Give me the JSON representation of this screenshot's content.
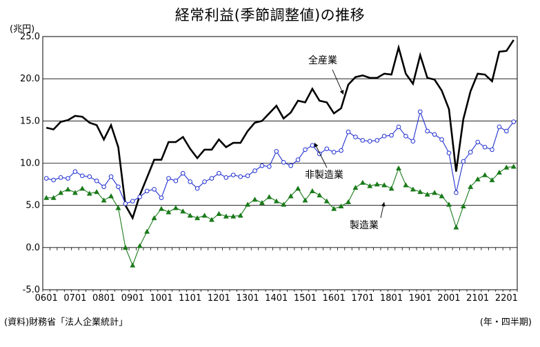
{
  "title": "経常利益(季節調整値)の推移",
  "unit_label": "(兆円)",
  "source_note": "(資料)財務省「法人企業統計」",
  "period_note": "(年・四半期)",
  "chart_data": {
    "type": "line",
    "ylim": [
      -5.0,
      25.0
    ],
    "yticks": [
      "25.0",
      "20.0",
      "15.0",
      "10.0",
      "5.0",
      "0.0",
      "-5.0"
    ],
    "ytick_values": [
      25,
      20,
      15,
      10,
      5,
      0,
      -5
    ],
    "xtick_labels": [
      "0601",
      "0701",
      "0801",
      "0901",
      "1001",
      "1101",
      "1201",
      "1301",
      "1401",
      "1501",
      "1601",
      "1701",
      "1801",
      "1901",
      "2001",
      "2101",
      "2201"
    ],
    "grid": "horizontal",
    "series": [
      {
        "name": "全産業",
        "color": "#000000",
        "marker": "none",
        "values": [
          14.2,
          14.0,
          14.9,
          15.1,
          15.6,
          15.5,
          14.8,
          14.5,
          12.8,
          14.5,
          11.9,
          5.0,
          3.5,
          6.2,
          8.3,
          10.4,
          10.4,
          12.5,
          12.5,
          13.1,
          11.7,
          10.6,
          11.6,
          11.6,
          12.8,
          11.9,
          12.4,
          12.4,
          13.8,
          14.8,
          15.0,
          15.9,
          16.8,
          15.3,
          16.0,
          17.4,
          17.2,
          18.8,
          17.4,
          17.2,
          15.9,
          16.5,
          19.3,
          20.2,
          20.4,
          20.1,
          20.1,
          20.6,
          20.5,
          23.7,
          20.6,
          19.4,
          22.8,
          20.1,
          19.9,
          18.6,
          16.4,
          9.0,
          15.2,
          18.5,
          20.6,
          20.5,
          19.7,
          23.2,
          23.3,
          24.6
        ]
      },
      {
        "name": "非製造業",
        "color": "#1f2fd0",
        "marker": "circle",
        "values": [
          8.2,
          8.0,
          8.3,
          8.2,
          9.0,
          8.5,
          8.4,
          7.9,
          7.2,
          8.4,
          7.2,
          5.2,
          5.5,
          6.0,
          6.7,
          6.9,
          5.9,
          8.2,
          7.9,
          8.8,
          7.8,
          7.0,
          7.8,
          8.2,
          8.8,
          8.3,
          8.6,
          8.4,
          8.5,
          9.1,
          9.7,
          9.6,
          11.4,
          10.1,
          9.7,
          10.4,
          11.6,
          12.1,
          11.1,
          11.7,
          11.3,
          11.5,
          13.7,
          13.1,
          12.7,
          12.6,
          12.7,
          13.2,
          13.3,
          14.3,
          13.2,
          12.6,
          16.1,
          13.8,
          13.4,
          12.8,
          11.2,
          6.5,
          10.2,
          11.3,
          12.5,
          11.9,
          11.6,
          14.3,
          13.8,
          14.9
        ]
      },
      {
        "name": "製造業",
        "color": "#1a7a1a",
        "marker": "triangle",
        "values": [
          5.9,
          5.9,
          6.5,
          6.9,
          6.5,
          7.0,
          6.4,
          6.6,
          5.6,
          6.1,
          4.7,
          0.0,
          -2.1,
          0.2,
          1.9,
          3.5,
          4.6,
          4.2,
          4.7,
          4.3,
          3.8,
          3.5,
          3.8,
          3.3,
          4.0,
          3.7,
          3.7,
          3.8,
          5.1,
          5.7,
          5.3,
          6.0,
          5.5,
          5.1,
          6.1,
          7.0,
          5.6,
          6.7,
          6.2,
          5.5,
          4.6,
          4.9,
          5.4,
          7.1,
          7.7,
          7.3,
          7.5,
          7.4,
          7.0,
          9.4,
          7.4,
          6.9,
          6.6,
          6.3,
          6.5,
          6.1,
          5.1,
          2.4,
          4.9,
          7.2,
          8.1,
          8.6,
          8.0,
          8.9,
          9.5,
          9.6
        ]
      }
    ],
    "annotations": [
      {
        "text": "全産業",
        "series": "全産業",
        "point_index": 44
      },
      {
        "text": "非製造業",
        "series": "非製造業",
        "point_index": 38
      },
      {
        "text": "製造業",
        "series": "製造業",
        "point_index": 47
      }
    ]
  }
}
